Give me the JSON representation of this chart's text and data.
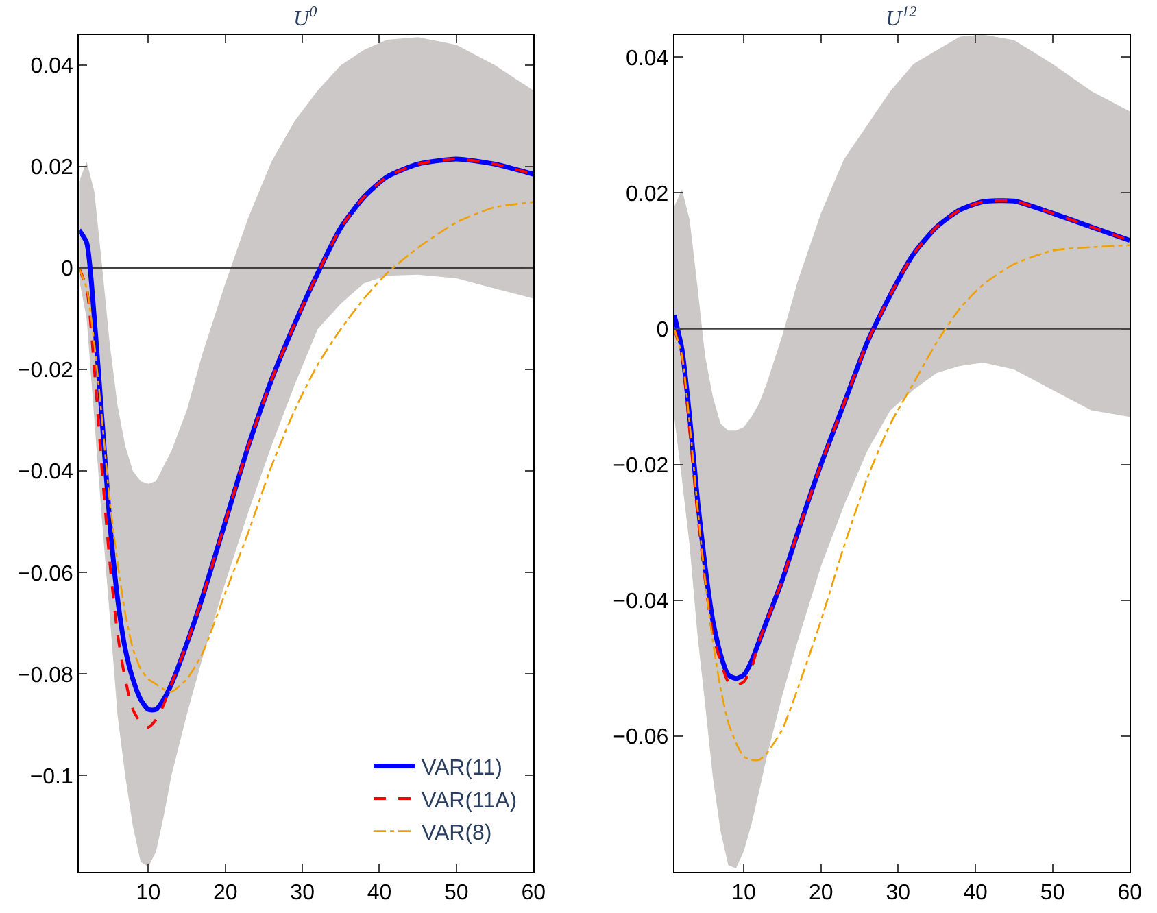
{
  "chart_data": [
    {
      "type": "line",
      "title": "U$^{0}$",
      "x": [
        1,
        2,
        3,
        4,
        5,
        6,
        7,
        8,
        9,
        10,
        11,
        12,
        13,
        15,
        17,
        20,
        23,
        26,
        29,
        32,
        35,
        38,
        41,
        45,
        50,
        55,
        60
      ],
      "xlim": [
        1,
        60
      ],
      "xticks": [
        10,
        20,
        30,
        40,
        50,
        60
      ],
      "ylim": [
        -0.119,
        0.046
      ],
      "yticks": [
        {
          "value": 0.04,
          "label": "0.04"
        },
        {
          "value": 0.02,
          "label": "0.02"
        },
        0,
        {
          "value": -0.02,
          "label": "−0.02"
        },
        {
          "value": -0.04,
          "label": "−0.04"
        },
        {
          "value": -0.06,
          "label": "−0.06"
        },
        {
          "value": -0.08,
          "label": "−0.08"
        },
        {
          "value": -0.1,
          "label": "−0.1"
        }
      ],
      "legend": "bottom right",
      "ref_lines": [
        {
          "axis": "y",
          "value": 0,
          "color": "#404040"
        }
      ],
      "series": [
        {
          "name": "VAR(11)",
          "color": "#0000ff",
          "line_style": "solid",
          "values": [
            0.0075,
            0.005,
            -0.01,
            -0.03,
            -0.05,
            -0.065,
            -0.075,
            -0.081,
            -0.085,
            -0.087,
            -0.087,
            -0.085,
            -0.082,
            -0.074,
            -0.065,
            -0.05,
            -0.035,
            -0.022,
            -0.011,
            -0.001,
            0.008,
            0.014,
            0.018,
            0.0205,
            0.0215,
            0.0205,
            0.0185
          ],
          "lower": [
            -0.002,
            -0.01,
            -0.03,
            -0.05,
            -0.0686,
            -0.088,
            -0.1,
            -0.11,
            -0.117,
            -0.118,
            -0.115,
            -0.108,
            -0.1,
            -0.088,
            -0.077,
            -0.062,
            -0.048,
            -0.035,
            -0.023,
            -0.012,
            -0.007,
            -0.003,
            -0.0015,
            -0.0013,
            -0.002,
            -0.00402,
            -0.006
          ],
          "upper": [
            0.017,
            0.021,
            0.015,
            0.0004,
            -0.015,
            -0.027,
            -0.035,
            -0.04,
            -0.042,
            -0.0425,
            -0.042,
            -0.039,
            -0.036,
            -0.028,
            -0.017,
            -0.003,
            0.01,
            0.021,
            0.029,
            0.035,
            0.04,
            0.043,
            0.045,
            0.0455,
            0.044,
            0.04,
            0.035
          ]
        },
        {
          "name": "VAR(11A)",
          "color": "#ff0000",
          "line_style": "dashed",
          "values": [
            0,
            -0.004,
            -0.02,
            -0.04,
            -0.058,
            -0.072,
            -0.081,
            -0.087,
            -0.0895,
            -0.0905,
            -0.089,
            -0.086,
            -0.082,
            -0.074,
            -0.065,
            -0.05,
            -0.035,
            -0.022,
            -0.011,
            -0.001,
            0.008,
            0.014,
            0.018,
            0.0205,
            0.0215,
            0.0205,
            0.0185
          ]
        },
        {
          "name": "VAR(8)",
          "color": "#f0a000",
          "line_style": "dashdot",
          "values": [
            0,
            -0.004,
            -0.015,
            -0.03,
            -0.046,
            -0.058,
            -0.068,
            -0.075,
            -0.079,
            -0.081,
            -0.082,
            -0.083,
            -0.0835,
            -0.081,
            -0.076,
            -0.064,
            -0.052,
            -0.039,
            -0.028,
            -0.019,
            -0.012,
            -0.006,
            -0.001,
            0.004,
            0.009,
            0.012,
            0.013
          ]
        }
      ]
    },
    {
      "type": "line",
      "title": "U$^{12}$",
      "x": [
        1,
        2,
        3,
        4,
        5,
        6,
        7,
        8,
        9,
        10,
        11,
        12,
        13,
        15,
        17,
        20,
        23,
        26,
        29,
        32,
        35,
        38,
        41,
        45,
        50,
        55,
        60
      ],
      "xlim": [
        1,
        60
      ],
      "xticks": [
        10,
        20,
        30,
        40,
        50,
        60
      ],
      "ylim": [
        -0.08,
        0.0433
      ],
      "yticks": [
        {
          "value": 0.04,
          "label": "0.04"
        },
        {
          "value": 0.02,
          "label": "0.02"
        },
        0,
        {
          "value": -0.02,
          "label": "−0.02"
        },
        {
          "value": -0.04,
          "label": "−0.04"
        },
        {
          "value": -0.06,
          "label": "−0.06"
        }
      ],
      "legend": false,
      "ref_lines": [
        {
          "axis": "y",
          "value": 0,
          "color": "#404040"
        }
      ],
      "series": [
        {
          "color": "#0000ff",
          "line_style": "solid",
          "values": [
            0.002,
            -0.003,
            -0.013,
            -0.025,
            -0.035,
            -0.043,
            -0.048,
            -0.051,
            -0.0515,
            -0.051,
            -0.049,
            -0.046,
            -0.043,
            -0.037,
            -0.03,
            -0.02,
            -0.011,
            -0.002,
            0.005,
            0.011,
            0.015,
            0.0175,
            0.0187,
            0.0188,
            0.017,
            0.015,
            0.013
          ],
          "lower": [
            -0.013,
            -0.0222,
            -0.032,
            -0.045,
            -0.0553,
            -0.066,
            -0.074,
            -0.079,
            -0.0795,
            -0.077,
            -0.073,
            -0.0681,
            -0.063,
            -0.054,
            -0.046,
            -0.035,
            -0.026,
            -0.018,
            -0.012,
            -0.009,
            -0.0065,
            -0.0055,
            -0.005,
            -0.006,
            -0.00902,
            -0.012,
            -0.013
          ],
          "upper": [
            0.018,
            0.0205,
            0.016,
            0.0063,
            -0.004,
            -0.01,
            -0.014,
            -0.015,
            -0.015,
            -0.0145,
            -0.013,
            -0.011,
            -0.008,
            -0.001,
            0.007,
            0.017,
            0.025,
            0.03,
            0.035,
            0.039,
            0.04101,
            0.043,
            0.0433,
            0.0425,
            0.039,
            0.035,
            0.032
          ]
        },
        {
          "color": "#ff0000",
          "line_style": "dashed",
          "values": [
            0,
            -0.004,
            -0.015,
            -0.027,
            -0.037,
            -0.045,
            -0.049,
            -0.052,
            -0.0525,
            -0.052,
            -0.05,
            -0.046,
            -0.043,
            -0.037,
            -0.03,
            -0.02,
            -0.011,
            -0.002,
            0.005,
            0.011,
            0.015,
            0.0175,
            0.0187,
            0.0188,
            0.017,
            0.015,
            0.013
          ]
        },
        {
          "color": "#f0a000",
          "line_style": "dashdot",
          "values": [
            0,
            -0.004,
            -0.014,
            -0.026,
            -0.037,
            -0.046,
            -0.053,
            -0.058,
            -0.061,
            -0.063,
            -0.0635,
            -0.0635,
            -0.0625,
            -0.059,
            -0.053,
            -0.043,
            -0.032,
            -0.022,
            -0.014,
            -0.008,
            -0.002,
            0.003,
            0.0065,
            0.0095,
            0.0115,
            0.012,
            0.0123
          ]
        }
      ]
    }
  ]
}
